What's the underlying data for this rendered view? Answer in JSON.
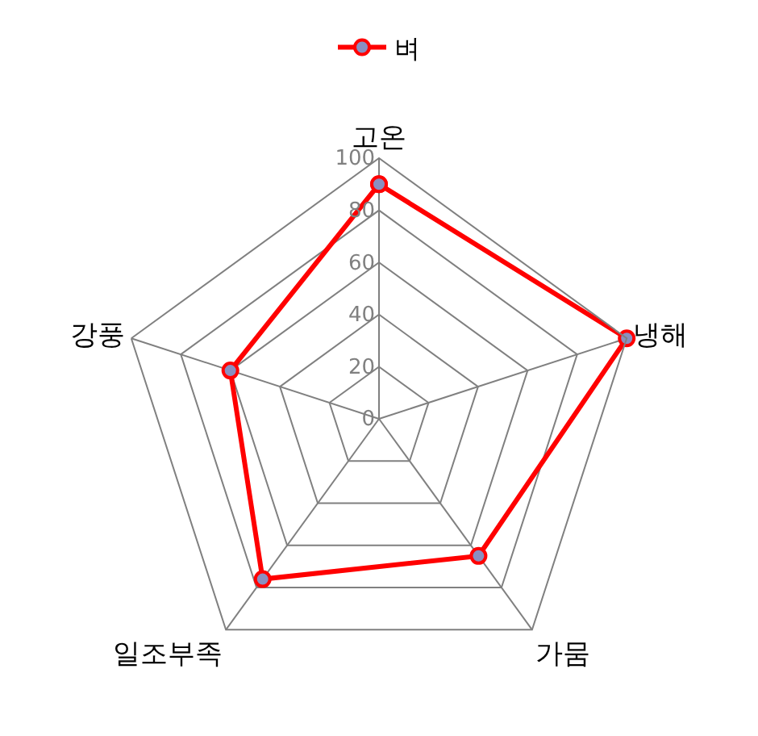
{
  "chart_data": {
    "type": "radar",
    "categories": [
      "고온",
      "냉해",
      "가뭄",
      "일조부족",
      "강풍"
    ],
    "series": [
      {
        "name": "벼",
        "color": "#ff0000",
        "values": [
          90,
          100,
          65,
          76,
          60
        ]
      }
    ],
    "ylim": [
      0,
      100
    ],
    "yticks": [
      0,
      20,
      40,
      60,
      80,
      100
    ],
    "grid": true,
    "legend": "top",
    "marker": "circle",
    "line_style": "solid"
  }
}
